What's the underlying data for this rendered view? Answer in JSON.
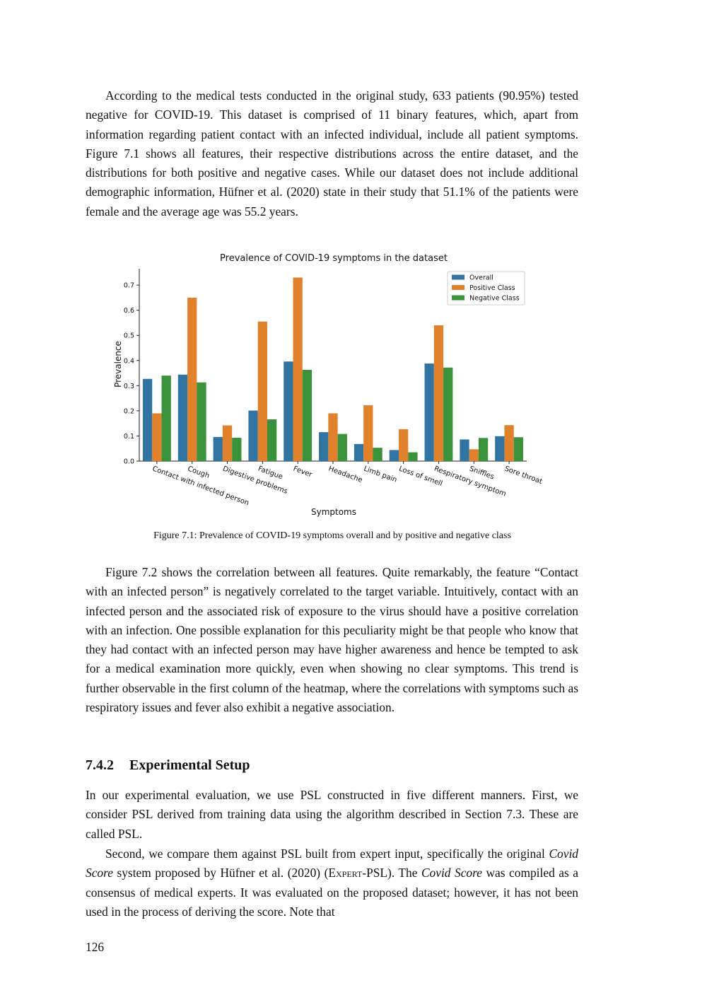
{
  "paragraphs_before_figure": [
    "According to the medical tests conducted in the original study, 633 patients (90.95%) tested negative for COVID-19. This dataset is comprised of 11 binary features, which, apart from information regarding patient contact with an infected individual, include all patient symptoms. Figure 7.1 shows all features, their respective distributions across the entire dataset, and the distributions for both positive and negative cases. While our dataset does not include additional demographic information, Hüfner et al. (2020) state in their study that 51.1% of the patients were female and the average age was 55.2 years."
  ],
  "chart_data": {
    "type": "bar",
    "title": "Prevalence of COVID-19 symptoms in the dataset",
    "x_label": "Symptoms",
    "y_label": "Prevalence",
    "categories": [
      "Contact with infected person",
      "Cough",
      "Digestive problems",
      "Fatigue",
      "Fever",
      "Headache",
      "Limb pain",
      "Loss of smell",
      "Respiratory symptom",
      "Sniffles",
      "Sore throat"
    ],
    "series": [
      {
        "name": "Overall",
        "color": "#3274a1",
        "values": [
          0.327,
          0.344,
          0.096,
          0.201,
          0.396,
          0.115,
          0.068,
          0.044,
          0.388,
          0.086,
          0.099
        ]
      },
      {
        "name": "Positive Class",
        "color": "#e1812c",
        "values": [
          0.19,
          0.65,
          0.142,
          0.555,
          0.73,
          0.19,
          0.222,
          0.127,
          0.54,
          0.047,
          0.143
        ]
      },
      {
        "name": "Negative Class",
        "color": "#3a923a",
        "values": [
          0.34,
          0.313,
          0.093,
          0.166,
          0.363,
          0.108,
          0.053,
          0.035,
          0.372,
          0.092,
          0.095
        ]
      }
    ],
    "ylim": [
      0,
      0.765
    ],
    "yticks": [
      {
        "value": 0,
        "label": "0.0"
      },
      0.1,
      0.2,
      0.3,
      0.4,
      0.5,
      0.6,
      0.7
    ],
    "legend": "upper right",
    "grid": false
  },
  "figure_caption": "Figure 7.1: Prevalence of COVID-19 symptoms overall and by positive and negative class",
  "paragraphs_after_figure": [
    "Figure 7.2 shows the correlation between all features. Quite remarkably, the feature “Contact with an infected person” is negatively correlated to the target variable. Intuitively, contact with an infected person and the associated risk of exposure to the virus should have a positive correlation with an infection. One possible explanation for this peculiarity might be that people who know that they had contact with an infected person may have higher awareness and hence be tempted to ask for a medical examination more quickly, even when showing no clear symptoms. This trend is further observable in the first column of the heatmap, where the correlations with symptoms such as respiratory issues and fever also exhibit a negative association."
  ],
  "section": {
    "number": "7.4.2",
    "title": "Experimental Setup"
  },
  "section_paragraphs": [
    [
      "In our experimental evaluation, we use PSL constructed in five different manners. First, we consider PSL derived from training data using the algorithm described in Section 7.3. These are called PSL."
    ],
    [
      "Second, we compare them against PSL built from expert input, specifically the original ",
      "Covid Score",
      " system proposed by Hüfner et al. (2020) (",
      "Expert",
      "-PSL). The ",
      "Covid Score",
      " was compiled as a consensus of medical experts. It was evaluated on the proposed dataset; however, it has not been used in the process of deriving the score. Note that"
    ]
  ],
  "page_number": "126"
}
